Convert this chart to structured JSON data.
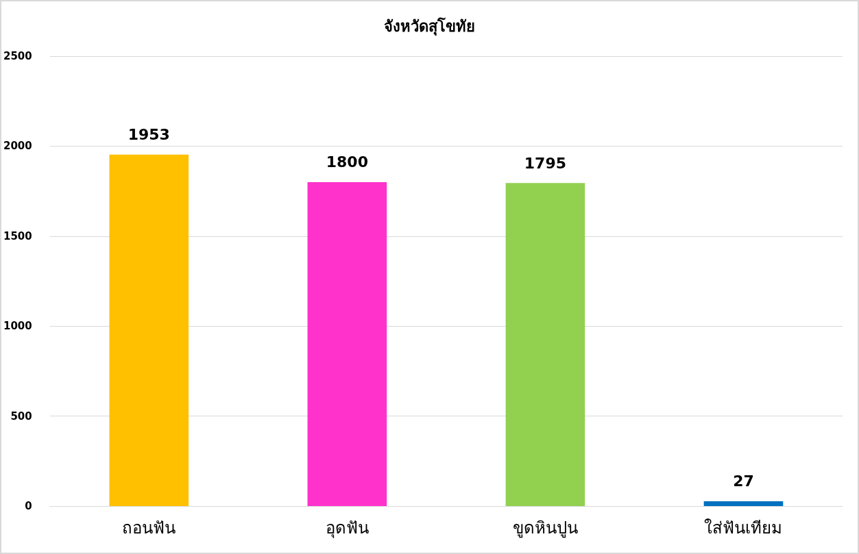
{
  "chart_data": {
    "type": "bar",
    "title": "จังหวัดสุโขทัย",
    "categories": [
      "ถอนฟัน",
      "อุดฟัน",
      "ขูดหินปูน",
      "ใส่ฟันเทียม"
    ],
    "values": [
      1953,
      1800,
      1795,
      27
    ],
    "colors": [
      "#ffc000",
      "#ff33cc",
      "#92d050",
      "#0070c0"
    ],
    "ylim": [
      0,
      2500
    ],
    "yticks": [
      0,
      500,
      1000,
      1500,
      2000,
      2500
    ],
    "grid": "y",
    "data_labels": true
  }
}
